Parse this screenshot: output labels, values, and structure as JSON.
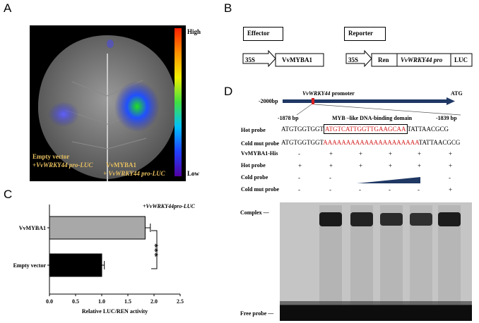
{
  "panels": {
    "a": {
      "letter": "A",
      "scale_high": "High",
      "scale_low": "Low",
      "left_label_line1": "Empty vector",
      "left_label_line2": "+VvWRKY44 pro-LUC",
      "right_label_line1": "VvMYBA1",
      "right_label_line2": "+ VvWRKY44 pro-LUC",
      "label_color": "#e8c060"
    },
    "b": {
      "letter": "B",
      "effector_title": "Effector",
      "reporter_title": "Reporter",
      "effector_promoter": "35S",
      "effector_gene": "VvMYBA1",
      "reporter_promoter": "35S",
      "reporter_ren": "Ren",
      "reporter_pro": "VvWRKY44 pro",
      "reporter_luc": "LUC"
    },
    "c": {
      "letter": "C",
      "legend": "+VvWRKY44pro-LUC",
      "significance": "***",
      "chart_data": {
        "type": "bar",
        "orientation": "horizontal",
        "categories": [
          "VvMYBA1",
          "Empty vector"
        ],
        "values": [
          1.83,
          1.0
        ],
        "errors": [
          0.1,
          0.05
        ],
        "bar_colors": [
          "#a8a8a8",
          "#000000"
        ],
        "xlabel": "Relative LUC/REN activity",
        "xticks": [
          "0.0",
          "0.5",
          "1.0",
          "1.5",
          "2.0",
          "2.5"
        ],
        "xlim": [
          0,
          2.5
        ]
      }
    },
    "d": {
      "letter": "D",
      "promoter_title": "VvWRKY44",
      "promoter_suffix": " promoter",
      "pos_start": "-2000bp",
      "atg": "ATG",
      "pos_left": "-1878 bp",
      "pos_right": "-1839 bp",
      "domain_label": "MYB –like DNA-binding domain",
      "hot_probe_label": "Hot probe",
      "hot_seq_pre": "ATGTGGTGGT",
      "hot_seq_mid": "ATGTCATTGGTTGAAGCAA",
      "hot_seq_post": "TATTAACGCG",
      "cold_probe_label": "Cold mut probe",
      "cold_seq_pre": "ATGTGGTGGT",
      "cold_seq_mid": "AAAAAAAAAAAAAAAAAAAAA",
      "cold_seq_post": "TATTAACGCG",
      "rows": [
        {
          "label": "VvMYBA1-His",
          "cells": [
            "-",
            "+",
            "+",
            "+",
            "+",
            "+"
          ]
        },
        {
          "label": "Hot probe",
          "cells": [
            "+",
            "+",
            "+",
            "+",
            "+",
            "+"
          ]
        },
        {
          "label": "Cold probe",
          "cells": [
            "-",
            "-",
            "",
            "",
            "",
            "-"
          ]
        },
        {
          "label": "Cold mut probe",
          "cells": [
            "-",
            "-",
            "-",
            "-",
            "-",
            "+"
          ]
        }
      ],
      "complex_label": "Complex —",
      "free_label": "Free probe —",
      "red": "#d42020",
      "navy": "#1f3864"
    }
  }
}
